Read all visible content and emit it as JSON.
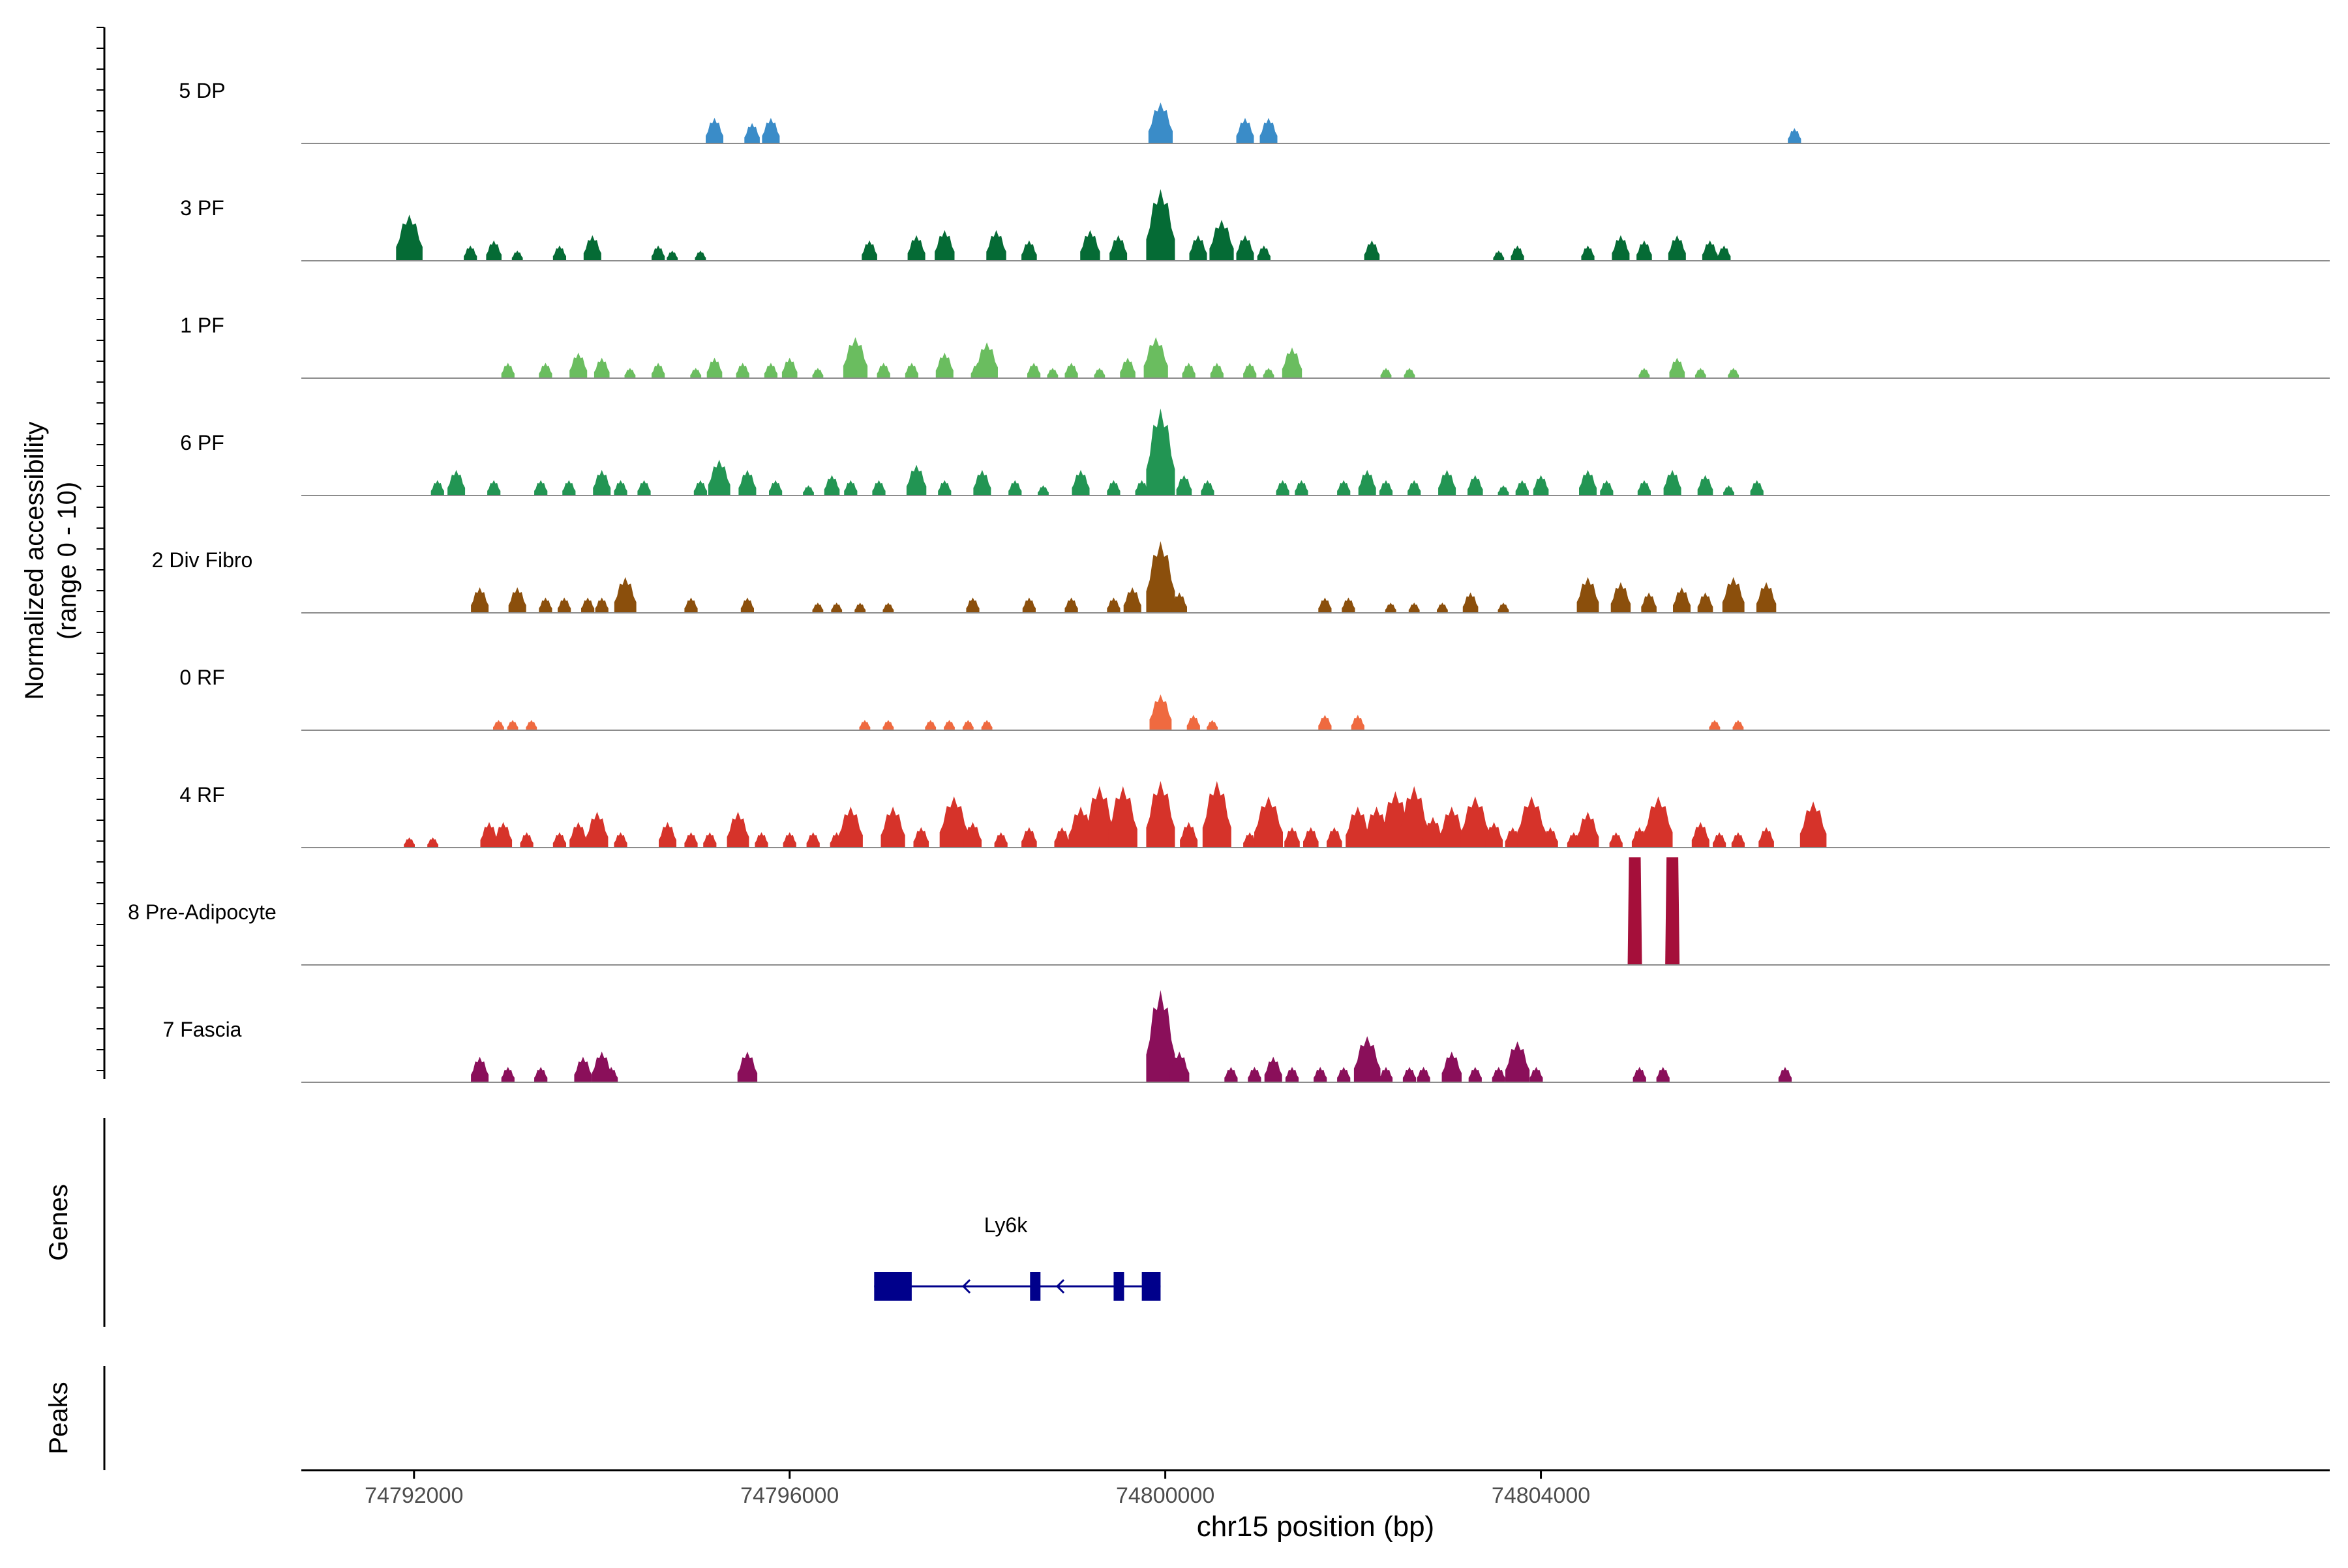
{
  "chart_data": {
    "type": "area",
    "ylabel": "Normalized accessibility",
    "ylabel_range": "(range 0 - 10)",
    "ylim": [
      0,
      10
    ],
    "xlabel": "chr15 position (bp)",
    "xlim": [
      74790800,
      74812400
    ],
    "xticks": [
      {
        "value": 74792000,
        "label": "74792000"
      },
      {
        "value": 74796000,
        "label": "74796000"
      },
      {
        "value": 74800000,
        "label": "74800000"
      },
      {
        "value": 74804000,
        "label": "74804000"
      }
    ],
    "tracks": [
      {
        "name": "5 DP",
        "color": "#3a8cc8",
        "peaks": [
          [
            74795200,
            5
          ],
          [
            74795600,
            4
          ],
          [
            74795800,
            5
          ],
          [
            74799950,
            8
          ],
          [
            74800850,
            5
          ],
          [
            74801100,
            5
          ],
          [
            74806700,
            3
          ]
        ]
      },
      {
        "name": "3 PF",
        "color": "#056b35",
        "peaks": [
          [
            74791950,
            9
          ],
          [
            74792600,
            3
          ],
          [
            74792850,
            4
          ],
          [
            74793100,
            2
          ],
          [
            74793550,
            3
          ],
          [
            74793900,
            5
          ],
          [
            74794600,
            3
          ],
          [
            74794750,
            2
          ],
          [
            74795050,
            2
          ],
          [
            74796850,
            4
          ],
          [
            74797350,
            5
          ],
          [
            74797650,
            6
          ],
          [
            74798200,
            6
          ],
          [
            74798550,
            4
          ],
          [
            74799200,
            6
          ],
          [
            74799500,
            5
          ],
          [
            74799950,
            14
          ],
          [
            74800350,
            5
          ],
          [
            74800600,
            8
          ],
          [
            74800850,
            5
          ],
          [
            74801050,
            3
          ],
          [
            74802200,
            4
          ],
          [
            74803550,
            2
          ],
          [
            74803750,
            3
          ],
          [
            74804500,
            3
          ],
          [
            74804850,
            5
          ],
          [
            74805100,
            4
          ],
          [
            74805450,
            5
          ],
          [
            74805800,
            4
          ],
          [
            74805950,
            3
          ]
        ]
      },
      {
        "name": "1 PF",
        "color": "#6abd5f",
        "peaks": [
          [
            74793000,
            3
          ],
          [
            74793400,
            3
          ],
          [
            74793750,
            5
          ],
          [
            74794000,
            4
          ],
          [
            74794300,
            2
          ],
          [
            74794600,
            3
          ],
          [
            74795000,
            2
          ],
          [
            74795200,
            4
          ],
          [
            74795500,
            3
          ],
          [
            74795800,
            3
          ],
          [
            74796000,
            4
          ],
          [
            74796300,
            2
          ],
          [
            74796700,
            8
          ],
          [
            74797000,
            3
          ],
          [
            74797300,
            3
          ],
          [
            74797650,
            5
          ],
          [
            74798000,
            3
          ],
          [
            74798100,
            7
          ],
          [
            74798600,
            3
          ],
          [
            74798800,
            2
          ],
          [
            74799000,
            3
          ],
          [
            74799300,
            2
          ],
          [
            74799600,
            4
          ],
          [
            74799900,
            8
          ],
          [
            74800250,
            3
          ],
          [
            74800550,
            3
          ],
          [
            74800900,
            3
          ],
          [
            74801100,
            2
          ],
          [
            74801350,
            6
          ],
          [
            74802350,
            2
          ],
          [
            74802600,
            2
          ],
          [
            74805100,
            2
          ],
          [
            74805450,
            4
          ],
          [
            74805700,
            2
          ],
          [
            74806050,
            2
          ]
        ]
      },
      {
        "name": "6 PF",
        "color": "#229553",
        "peaks": [
          [
            74792250,
            3
          ],
          [
            74792450,
            5
          ],
          [
            74792850,
            3
          ],
          [
            74793350,
            3
          ],
          [
            74793650,
            3
          ],
          [
            74794000,
            5
          ],
          [
            74794200,
            3
          ],
          [
            74794450,
            3
          ],
          [
            74795050,
            3
          ],
          [
            74795250,
            7
          ],
          [
            74795550,
            5
          ],
          [
            74795850,
            3
          ],
          [
            74796200,
            2
          ],
          [
            74796450,
            4
          ],
          [
            74796650,
            3
          ],
          [
            74796950,
            3
          ],
          [
            74797350,
            6
          ],
          [
            74797650,
            3
          ],
          [
            74798050,
            5
          ],
          [
            74798400,
            3
          ],
          [
            74798700,
            2
          ],
          [
            74799100,
            5
          ],
          [
            74799450,
            3
          ],
          [
            74799750,
            3
          ],
          [
            74799950,
            17
          ],
          [
            74800200,
            4
          ],
          [
            74800450,
            3
          ],
          [
            74801250,
            3
          ],
          [
            74801450,
            3
          ],
          [
            74801900,
            3
          ],
          [
            74802150,
            5
          ],
          [
            74802350,
            3
          ],
          [
            74802650,
            3
          ],
          [
            74803000,
            5
          ],
          [
            74803300,
            4
          ],
          [
            74803600,
            2
          ],
          [
            74803800,
            3
          ],
          [
            74804000,
            4
          ],
          [
            74804500,
            5
          ],
          [
            74804700,
            3
          ],
          [
            74805100,
            3
          ],
          [
            74805400,
            5
          ],
          [
            74805750,
            4
          ],
          [
            74806000,
            2
          ],
          [
            74806300,
            3
          ]
        ]
      },
      {
        "name": "2 Div Fibro",
        "color": "#8b4f0c",
        "peaks": [
          [
            74792700,
            5
          ],
          [
            74793100,
            5
          ],
          [
            74793400,
            3
          ],
          [
            74793600,
            3
          ],
          [
            74793850,
            3
          ],
          [
            74794000,
            3
          ],
          [
            74794250,
            7
          ],
          [
            74794950,
            3
          ],
          [
            74795550,
            3
          ],
          [
            74796300,
            2
          ],
          [
            74796500,
            2
          ],
          [
            74796750,
            2
          ],
          [
            74797050,
            2
          ],
          [
            74797950,
            3
          ],
          [
            74798550,
            3
          ],
          [
            74799000,
            3
          ],
          [
            74799450,
            3
          ],
          [
            74799650,
            5
          ],
          [
            74799950,
            14
          ],
          [
            74800150,
            4
          ],
          [
            74801700,
            3
          ],
          [
            74801950,
            3
          ],
          [
            74802400,
            2
          ],
          [
            74802650,
            2
          ],
          [
            74802950,
            2
          ],
          [
            74803250,
            4
          ],
          [
            74803600,
            2
          ],
          [
            74804500,
            7
          ],
          [
            74804850,
            6
          ],
          [
            74805150,
            4
          ],
          [
            74805500,
            5
          ],
          [
            74805750,
            4
          ],
          [
            74806050,
            7
          ],
          [
            74806400,
            6
          ]
        ]
      },
      {
        "name": "0 RF",
        "color": "#ef6a40",
        "peaks": [
          [
            74792900,
            2
          ],
          [
            74793050,
            2
          ],
          [
            74793250,
            2
          ],
          [
            74796800,
            2
          ],
          [
            74797050,
            2
          ],
          [
            74797500,
            2
          ],
          [
            74797700,
            2
          ],
          [
            74797900,
            2
          ],
          [
            74798100,
            2
          ],
          [
            74799950,
            7
          ],
          [
            74800300,
            3
          ],
          [
            74800500,
            2
          ],
          [
            74801700,
            3
          ],
          [
            74802050,
            3
          ],
          [
            74805850,
            2
          ],
          [
            74806100,
            2
          ]
        ]
      },
      {
        "name": "4 RF",
        "color": "#d6332a",
        "peaks": [
          [
            74791950,
            2
          ],
          [
            74792200,
            2
          ],
          [
            74792800,
            5
          ],
          [
            74792950,
            5
          ],
          [
            74793200,
            3
          ],
          [
            74793550,
            3
          ],
          [
            74793750,
            5
          ],
          [
            74793950,
            7
          ],
          [
            74794200,
            3
          ],
          [
            74794700,
            5
          ],
          [
            74794950,
            3
          ],
          [
            74795150,
            3
          ],
          [
            74795450,
            7
          ],
          [
            74795700,
            3
          ],
          [
            74796000,
            3
          ],
          [
            74796250,
            3
          ],
          [
            74796500,
            3
          ],
          [
            74796650,
            8
          ],
          [
            74797100,
            8
          ],
          [
            74797400,
            4
          ],
          [
            74797750,
            10
          ],
          [
            74797950,
            5
          ],
          [
            74798250,
            3
          ],
          [
            74798550,
            4
          ],
          [
            74798900,
            4
          ],
          [
            74799100,
            8
          ],
          [
            74799300,
            12
          ],
          [
            74799550,
            12
          ],
          [
            74799950,
            13
          ],
          [
            74800250,
            5
          ],
          [
            74800550,
            13
          ],
          [
            74800900,
            3
          ],
          [
            74801100,
            10
          ],
          [
            74801350,
            4
          ],
          [
            74801550,
            4
          ],
          [
            74801800,
            4
          ],
          [
            74802050,
            8
          ],
          [
            74802250,
            8
          ],
          [
            74802450,
            11
          ],
          [
            74802650,
            12
          ],
          [
            74802850,
            6
          ],
          [
            74803050,
            8
          ],
          [
            74803300,
            10
          ],
          [
            74803500,
            5
          ],
          [
            74803700,
            4
          ],
          [
            74803900,
            10
          ],
          [
            74804100,
            4
          ],
          [
            74804350,
            3
          ],
          [
            74804500,
            7
          ],
          [
            74804800,
            3
          ],
          [
            74805050,
            4
          ],
          [
            74805250,
            10
          ],
          [
            74805700,
            5
          ],
          [
            74805900,
            3
          ],
          [
            74806100,
            3
          ],
          [
            74806400,
            4
          ],
          [
            74806900,
            9
          ]
        ]
      },
      {
        "name": "8 Pre-Adipocyte",
        "color": "#a50f3a",
        "peaks": [
          [
            74805000,
            21
          ],
          [
            74805400,
            21
          ]
        ]
      },
      {
        "name": "7 Fascia",
        "color": "#8a0f5a",
        "peaks": [
          [
            74792700,
            5
          ],
          [
            74793000,
            3
          ],
          [
            74793350,
            3
          ],
          [
            74793800,
            5
          ],
          [
            74794000,
            6
          ],
          [
            74794100,
            3
          ],
          [
            74795550,
            6
          ],
          [
            74799950,
            18
          ],
          [
            74800150,
            6
          ],
          [
            74800700,
            3
          ],
          [
            74800950,
            3
          ],
          [
            74801150,
            5
          ],
          [
            74801350,
            3
          ],
          [
            74801650,
            3
          ],
          [
            74801900,
            3
          ],
          [
            74802150,
            9
          ],
          [
            74802350,
            3
          ],
          [
            74802600,
            3
          ],
          [
            74802750,
            3
          ],
          [
            74803050,
            6
          ],
          [
            74803300,
            3
          ],
          [
            74803550,
            3
          ],
          [
            74803750,
            8
          ],
          [
            74803950,
            3
          ],
          [
            74805050,
            3
          ],
          [
            74805300,
            3
          ],
          [
            74806600,
            3
          ]
        ]
      }
    ],
    "genes_label": "Genes",
    "gene": {
      "name": "Ly6k",
      "strand": "-",
      "start": 74796900,
      "end": 74799950,
      "exons": [
        [
          74796900,
          74797300
        ],
        [
          74798560,
          74798660
        ],
        [
          74799450,
          74799560
        ],
        [
          74799750,
          74799950
        ]
      ]
    },
    "peaks_label": "Peaks"
  }
}
